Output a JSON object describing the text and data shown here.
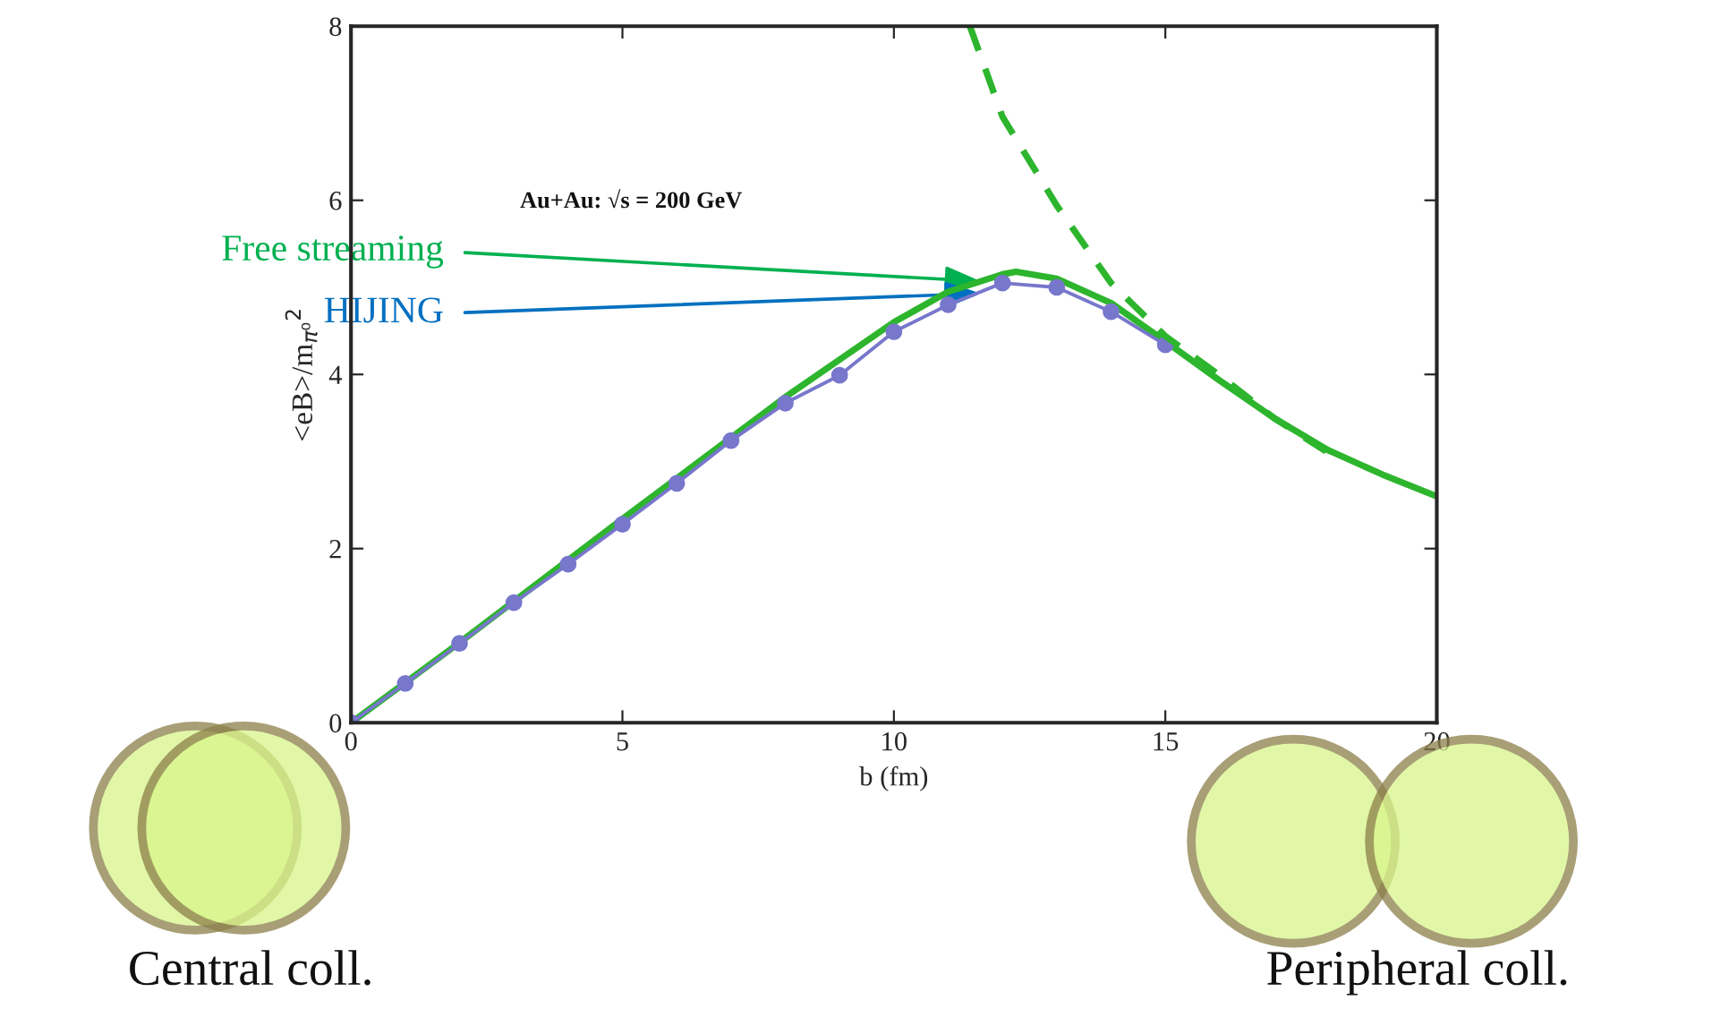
{
  "chart_data": {
    "type": "line",
    "xlabel": "b (fm)",
    "ylabel": "<eB>/m$_{π⁰}$$^{2}$",
    "xlim": [
      0,
      20
    ],
    "xticks": [
      0,
      5,
      10,
      15,
      20
    ],
    "ylim": [
      0,
      8
    ],
    "yticks": [
      0,
      2,
      4,
      6,
      8
    ],
    "grid": false,
    "legend": false,
    "series": [
      {
        "color": "#2db52d",
        "line_style": "solid",
        "marker": "none",
        "x": [
          0,
          2,
          5,
          8,
          10,
          11,
          12,
          12.25,
          13,
          14,
          15,
          16,
          17,
          18,
          19,
          20
        ],
        "values": [
          0,
          0.92,
          2.34,
          3.74,
          4.6,
          4.95,
          5.15,
          5.18,
          5.1,
          4.82,
          4.38,
          3.93,
          3.5,
          3.13,
          2.85,
          2.6
        ]
      },
      {
        "color": "#7777cc",
        "line_style": "solid",
        "marker": "circle",
        "x": [
          0,
          1,
          2,
          3,
          4,
          5,
          6,
          7,
          8,
          9,
          10,
          11,
          12,
          13,
          14,
          15
        ],
        "values": [
          0,
          0.45,
          0.91,
          1.38,
          1.82,
          2.28,
          2.75,
          3.24,
          3.67,
          3.99,
          4.49,
          4.8,
          5.05,
          5.0,
          4.72,
          4.34
        ]
      },
      {
        "color": "#2db52d",
        "line_style": "dashed",
        "marker": "none",
        "x": [
          11.4,
          12,
          13,
          14,
          15,
          16,
          17,
          18,
          18.2
        ],
        "values": [
          8,
          6.96,
          5.94,
          5.05,
          4.44,
          3.99,
          3.5,
          3.1,
          3.03
        ]
      }
    ],
    "annotations": [
      "Au+Au: √s = 200 GeV",
      {
        "text": "Free streaming",
        "x": 11.6,
        "y": 5.07
      },
      {
        "text": "HIJING",
        "x": 11.6,
        "y": 4.93
      },
      "Central coll.",
      "Peripheral coll."
    ]
  }
}
